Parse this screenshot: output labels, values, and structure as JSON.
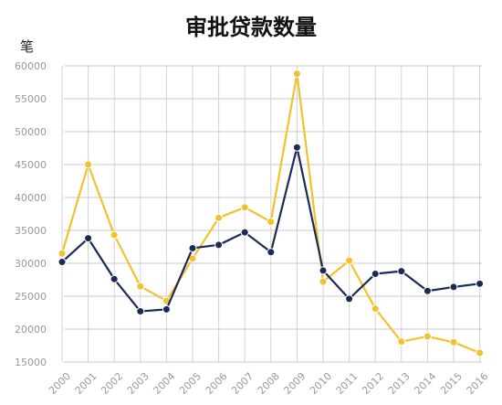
{
  "chart_data": {
    "type": "line",
    "title": "审批贷款数量",
    "ylabel": "笔",
    "xlabel": "",
    "ylim": [
      15000,
      60000
    ],
    "yticks": [
      "60000",
      "55000",
      "50000",
      "45000",
      "40000",
      "35000",
      "30000",
      "25000",
      "20000",
      "15000"
    ],
    "ytick_values": [
      60000,
      55000,
      50000,
      45000,
      40000,
      35000,
      30000,
      25000,
      20000,
      15000
    ],
    "categories": [
      "2000",
      "2001",
      "2002",
      "2003",
      "2004",
      "2005",
      "2006",
      "2007",
      "2008",
      "2009",
      "2010",
      "2011",
      "2012",
      "2013",
      "2014",
      "2015",
      "2016"
    ],
    "grid": true,
    "series": [
      {
        "color": "#f2c12e",
        "values": [
          31500,
          45000,
          34300,
          26500,
          24300,
          30700,
          36900,
          38500,
          36300,
          58800,
          27200,
          30400,
          23100,
          18100,
          18900,
          18000,
          16400
        ]
      },
      {
        "color": "#1c2a55",
        "values": [
          30200,
          33800,
          27600,
          22700,
          23000,
          32300,
          32800,
          34700,
          31700,
          47600,
          28900,
          24600,
          28400,
          28800,
          25800,
          26400,
          26900
        ]
      }
    ]
  }
}
